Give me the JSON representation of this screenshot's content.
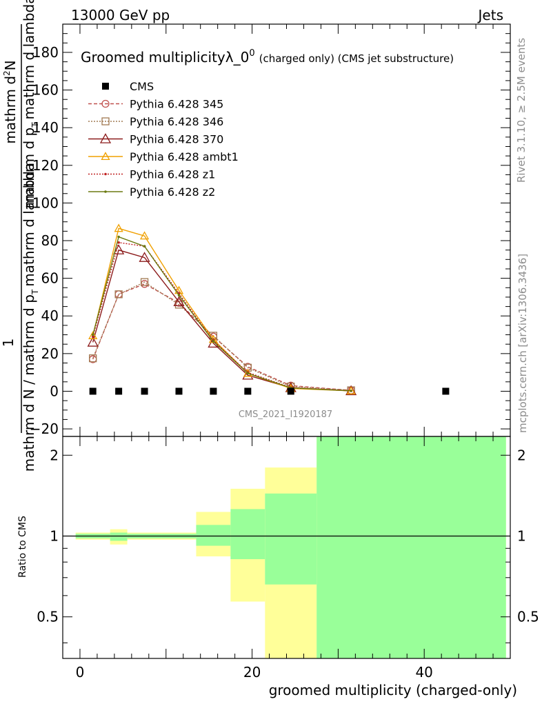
{
  "header": {
    "left": "13000 GeV pp",
    "right": "Jets"
  },
  "side_labels": {
    "rivet": "Rivet 3.1.10, ≥ 2.5M events",
    "mcplots": "mcplots.cern.ch [arXiv:1306.3436]"
  },
  "watermark": "CMS_2021_I1920187",
  "ratio_label": "Ratio to CMS",
  "chart_data": [
    {
      "type": "line",
      "title": "Groomed multiplicityλ_0",
      "title_sup": "0",
      "title_suffix": "(charged only) (CMS jet substructure)",
      "ylabel_num": "mathrm d",
      "ylabel_num_sup": "2",
      "ylabel_num_after": "N",
      "ylabel_den": "mathrm d p",
      "ylabel_den_sub": "T",
      "ylabel_den_after": "mathrm d lambda",
      "ylabel_prefix": "1",
      "ylabel_main": "mathrm d N / mathrm d p",
      "ylabel_main_sub": "T",
      "xlabel": "groomed multiplicity (charged-only)",
      "xlim": [
        -2,
        50
      ],
      "ylim": [
        -24,
        195
      ],
      "x_ticks": [
        "0",
        "20",
        "40"
      ],
      "y_ticks": [
        "−20",
        "0",
        "20",
        "40",
        "60",
        "80",
        "100",
        "120",
        "140",
        "160",
        "180"
      ],
      "legend_position": "top-left",
      "colors": {
        "cms": "#000000",
        "p345": "#c0504d",
        "p346": "#a07850",
        "p370": "#8b1a1a",
        "ambt1": "#f0a000",
        "z1": "#c02020",
        "z2": "#6b7a10"
      },
      "series": [
        {
          "name": "CMS",
          "style": "cms",
          "x": [
            1.5,
            4.5,
            7.5,
            11.5,
            15.5,
            19.5,
            24.5,
            42.5
          ],
          "y": [
            0,
            0,
            0,
            0,
            0,
            0,
            0,
            0
          ]
        },
        {
          "name": "Pythia 6.428 345",
          "style": "p345",
          "x": [
            1.5,
            4.5,
            7.5,
            11.5,
            15.5,
            19.5,
            24.5,
            31.5
          ],
          "y": [
            17,
            51.5,
            57,
            47,
            29,
            13,
            3,
            0.5
          ]
        },
        {
          "name": "Pythia 6.428 346",
          "style": "p346",
          "x": [
            1.5,
            4.5,
            7.5,
            11.5,
            15.5,
            19.5,
            24.5,
            31.5
          ],
          "y": [
            17.5,
            51.5,
            58,
            46,
            29.5,
            12.5,
            2.5,
            0.5
          ]
        },
        {
          "name": "Pythia 6.428 370",
          "style": "p370",
          "x": [
            1.5,
            4.5,
            7.5,
            11.5,
            15.5,
            19.5,
            24.5,
            31.5
          ],
          "y": [
            26,
            75,
            71,
            47.5,
            25.5,
            8.5,
            1.8,
            0.2
          ]
        },
        {
          "name": "Pythia 6.428 ambt1",
          "style": "ambt1",
          "x": [
            1.5,
            4.5,
            7.5,
            11.5,
            15.5,
            19.5,
            24.5,
            31.5
          ],
          "y": [
            29.5,
            86.5,
            82.5,
            53.5,
            27.5,
            9.5,
            1.5,
            0.2
          ]
        },
        {
          "name": "Pythia 6.428 z1",
          "style": "z1",
          "x": [
            1.5,
            4.5,
            7.5,
            11.5,
            15.5,
            19.5,
            24.5,
            31.5
          ],
          "y": [
            29,
            79,
            77,
            52,
            27,
            10,
            2,
            0.2
          ]
        },
        {
          "name": "Pythia 6.428 z2",
          "style": "z2",
          "x": [
            1.5,
            4.5,
            7.5,
            11.5,
            15.5,
            19.5,
            24.5,
            31.5
          ],
          "y": [
            30,
            82,
            77,
            51,
            26.5,
            9.5,
            1.8,
            0.2
          ]
        }
      ]
    },
    {
      "type": "area",
      "ylabel": "Ratio to CMS",
      "xlim": [
        -2,
        50
      ],
      "ylim": [
        0.35,
        2.35
      ],
      "y_ticks": [
        "0.5",
        "1",
        "2"
      ],
      "reference_line": 1,
      "colors": {
        "outer_band": "#ffff99",
        "inner_band": "#99ff99"
      },
      "bins": [
        {
          "x_lo": -0.5,
          "x_hi": 3.5,
          "outer_lo": 0.97,
          "outer_hi": 1.03,
          "inner_lo": 0.98,
          "inner_hi": 1.02
        },
        {
          "x_lo": 3.5,
          "x_hi": 5.5,
          "outer_lo": 0.93,
          "outer_hi": 1.06,
          "inner_lo": 0.96,
          "inner_hi": 1.03
        },
        {
          "x_lo": 5.5,
          "x_hi": 9.5,
          "outer_lo": 0.97,
          "outer_hi": 1.03,
          "inner_lo": 0.98,
          "inner_hi": 1.02
        },
        {
          "x_lo": 9.5,
          "x_hi": 13.5,
          "outer_lo": 0.97,
          "outer_hi": 1.03,
          "inner_lo": 0.98,
          "inner_hi": 1.02
        },
        {
          "x_lo": 13.5,
          "x_hi": 17.5,
          "outer_lo": 0.84,
          "outer_hi": 1.23,
          "inner_lo": 0.92,
          "inner_hi": 1.1
        },
        {
          "x_lo": 17.5,
          "x_hi": 21.5,
          "outer_lo": 0.57,
          "outer_hi": 1.5,
          "inner_lo": 0.82,
          "inner_hi": 1.26
        },
        {
          "x_lo": 21.5,
          "x_hi": 27.5,
          "outer_lo": 0.2,
          "outer_hi": 1.8,
          "inner_lo": 0.66,
          "inner_hi": 1.44
        },
        {
          "x_lo": 27.5,
          "x_hi": 49.5,
          "outer_lo": 0.2,
          "outer_hi": 3.0,
          "inner_lo": 0.2,
          "inner_hi": 3.0
        }
      ]
    }
  ]
}
